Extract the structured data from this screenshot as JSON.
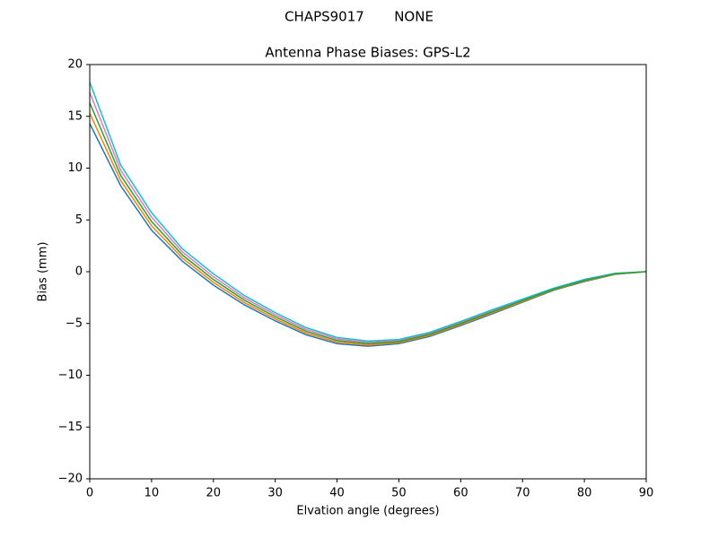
{
  "chart_data": {
    "type": "line",
    "suptitle": "CHAPS9017       NONE",
    "title": "Antenna Phase Biases: GPS-L2",
    "xlabel": "Elvation angle (degrees)",
    "ylabel": "Bias (mm)",
    "x": [
      0,
      5,
      10,
      15,
      20,
      25,
      30,
      35,
      40,
      45,
      50,
      55,
      60,
      65,
      70,
      75,
      80,
      85,
      90
    ],
    "series": [
      {
        "color": "#1f77b4",
        "values": [
          14.3,
          8.3,
          4.0,
          1.0,
          -1.3,
          -3.2,
          -4.75,
          -6.1,
          -6.95,
          -7.2,
          -6.95,
          -6.25,
          -5.2,
          -4.1,
          -2.95,
          -1.8,
          -0.95,
          -0.25,
          0
        ]
      },
      {
        "color": "#ff7f0e",
        "values": [
          15.3,
          8.8,
          4.43,
          1.3,
          -1.03,
          -2.98,
          -4.55,
          -5.93,
          -6.8,
          -7.08,
          -6.85,
          -6.15,
          -5.1,
          -4.0,
          -2.88,
          -1.75,
          -0.9,
          -0.23,
          0
        ]
      },
      {
        "color": "#e377c2",
        "values": [
          17.3,
          9.8,
          5.28,
          1.9,
          -0.48,
          -2.53,
          -4.15,
          -5.58,
          -6.5,
          -6.83,
          -6.65,
          -5.95,
          -4.9,
          -3.8,
          -2.73,
          -1.65,
          -0.8,
          -0.18,
          0
        ]
      },
      {
        "color": "#17becf",
        "values": [
          18.3,
          10.3,
          5.7,
          2.2,
          -0.2,
          -2.3,
          -3.95,
          -5.4,
          -6.35,
          -6.7,
          -6.55,
          -5.85,
          -4.8,
          -3.7,
          -2.65,
          -1.6,
          -0.75,
          -0.15,
          0
        ]
      },
      {
        "color": "#2ca02c",
        "values": [
          16.3,
          9.3,
          4.85,
          1.6,
          -0.75,
          -2.75,
          -4.35,
          -5.75,
          -6.65,
          -6.95,
          -6.75,
          -6.05,
          -5.0,
          -3.9,
          -2.8,
          -1.7,
          -0.85,
          -0.2,
          0
        ]
      }
    ],
    "xlim": [
      0,
      90
    ],
    "xticks": [
      0,
      10,
      20,
      30,
      40,
      50,
      60,
      70,
      80,
      90
    ],
    "ylim": [
      -20,
      20
    ],
    "yticks": [
      {
        "value": -20,
        "label": "−20"
      },
      {
        "value": -15,
        "label": "−15"
      },
      {
        "value": -10,
        "label": "−10"
      },
      {
        "value": -5,
        "label": "−5"
      },
      0,
      5,
      10,
      15,
      20
    ],
    "grid": false
  }
}
